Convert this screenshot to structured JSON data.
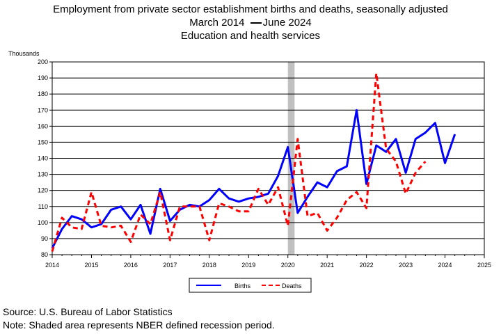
{
  "chart_data": {
    "type": "line",
    "title": "Employment from private sector establishment births and deaths, seasonally adjusted",
    "subtitle_range_start": "March 2014",
    "subtitle_range_end": "June 2024",
    "subtitle2": "Education and health services",
    "ylabel": "Thousands",
    "ylim": [
      80,
      200
    ],
    "yticks": [
      "80",
      "90",
      "100",
      "110",
      "120",
      "130",
      "140",
      "150",
      "160",
      "170",
      "180",
      "190",
      "200"
    ],
    "xlim": [
      2014,
      2025
    ],
    "xticks": [
      "2014",
      "2015",
      "2016",
      "2017",
      "2018",
      "2019",
      "2020",
      "2021",
      "2022",
      "2023",
      "2024",
      "2025"
    ],
    "grid": "horizontal",
    "recession_shading": {
      "start": 2020.0,
      "end": 2020.17,
      "color": "#c0c0c0"
    },
    "legend_position": "bottom-center",
    "series": [
      {
        "name": "Births",
        "color": "#0000ff",
        "dash": "solid",
        "x": [
          2014.0,
          2014.25,
          2014.5,
          2014.75,
          2015.0,
          2015.25,
          2015.5,
          2015.75,
          2016.0,
          2016.25,
          2016.5,
          2016.75,
          2017.0,
          2017.25,
          2017.5,
          2017.75,
          2018.0,
          2018.25,
          2018.5,
          2018.75,
          2019.0,
          2019.25,
          2019.5,
          2019.75,
          2020.0,
          2020.25,
          2020.5,
          2020.75,
          2021.0,
          2021.25,
          2021.5,
          2021.75,
          2022.0,
          2022.25,
          2022.5,
          2022.75,
          2023.0,
          2023.25,
          2023.5,
          2023.75,
          2024.0,
          2024.25
        ],
        "values": [
          84,
          96,
          104,
          102,
          97,
          99,
          108,
          110,
          102,
          111,
          93,
          121,
          101,
          108,
          111,
          110,
          114,
          121,
          115,
          113,
          115,
          116,
          118,
          129,
          147,
          106,
          116,
          125,
          122,
          132,
          135,
          170,
          124,
          148,
          144,
          152,
          131,
          152,
          156,
          162,
          137,
          155
        ]
      },
      {
        "name": "Deaths",
        "color": "#ff0000",
        "dash": "dashed",
        "x": [
          2014.0,
          2014.25,
          2014.5,
          2014.75,
          2015.0,
          2015.25,
          2015.5,
          2015.75,
          2016.0,
          2016.25,
          2016.5,
          2016.75,
          2017.0,
          2017.25,
          2017.5,
          2017.75,
          2018.0,
          2018.25,
          2018.5,
          2018.75,
          2019.0,
          2019.25,
          2019.5,
          2019.75,
          2020.0,
          2020.25,
          2020.5,
          2020.75,
          2021.0,
          2021.25,
          2021.5,
          2021.75,
          2022.0,
          2022.25,
          2022.5,
          2022.75,
          2023.0,
          2023.25,
          2023.5
        ],
        "values": [
          82,
          103,
          97,
          96,
          119,
          98,
          97,
          98,
          88,
          105,
          99,
          119,
          89,
          110,
          110,
          110,
          89,
          112,
          110,
          107,
          107,
          121,
          111,
          122,
          98,
          152,
          104,
          106,
          95,
          103,
          114,
          119,
          109,
          193,
          146,
          138,
          118,
          131,
          138
        ]
      }
    ]
  },
  "footer": {
    "source": "Source: U.S. Bureau of Labor Statistics",
    "note": "Note: Shaded area represents NBER defined recession period."
  }
}
